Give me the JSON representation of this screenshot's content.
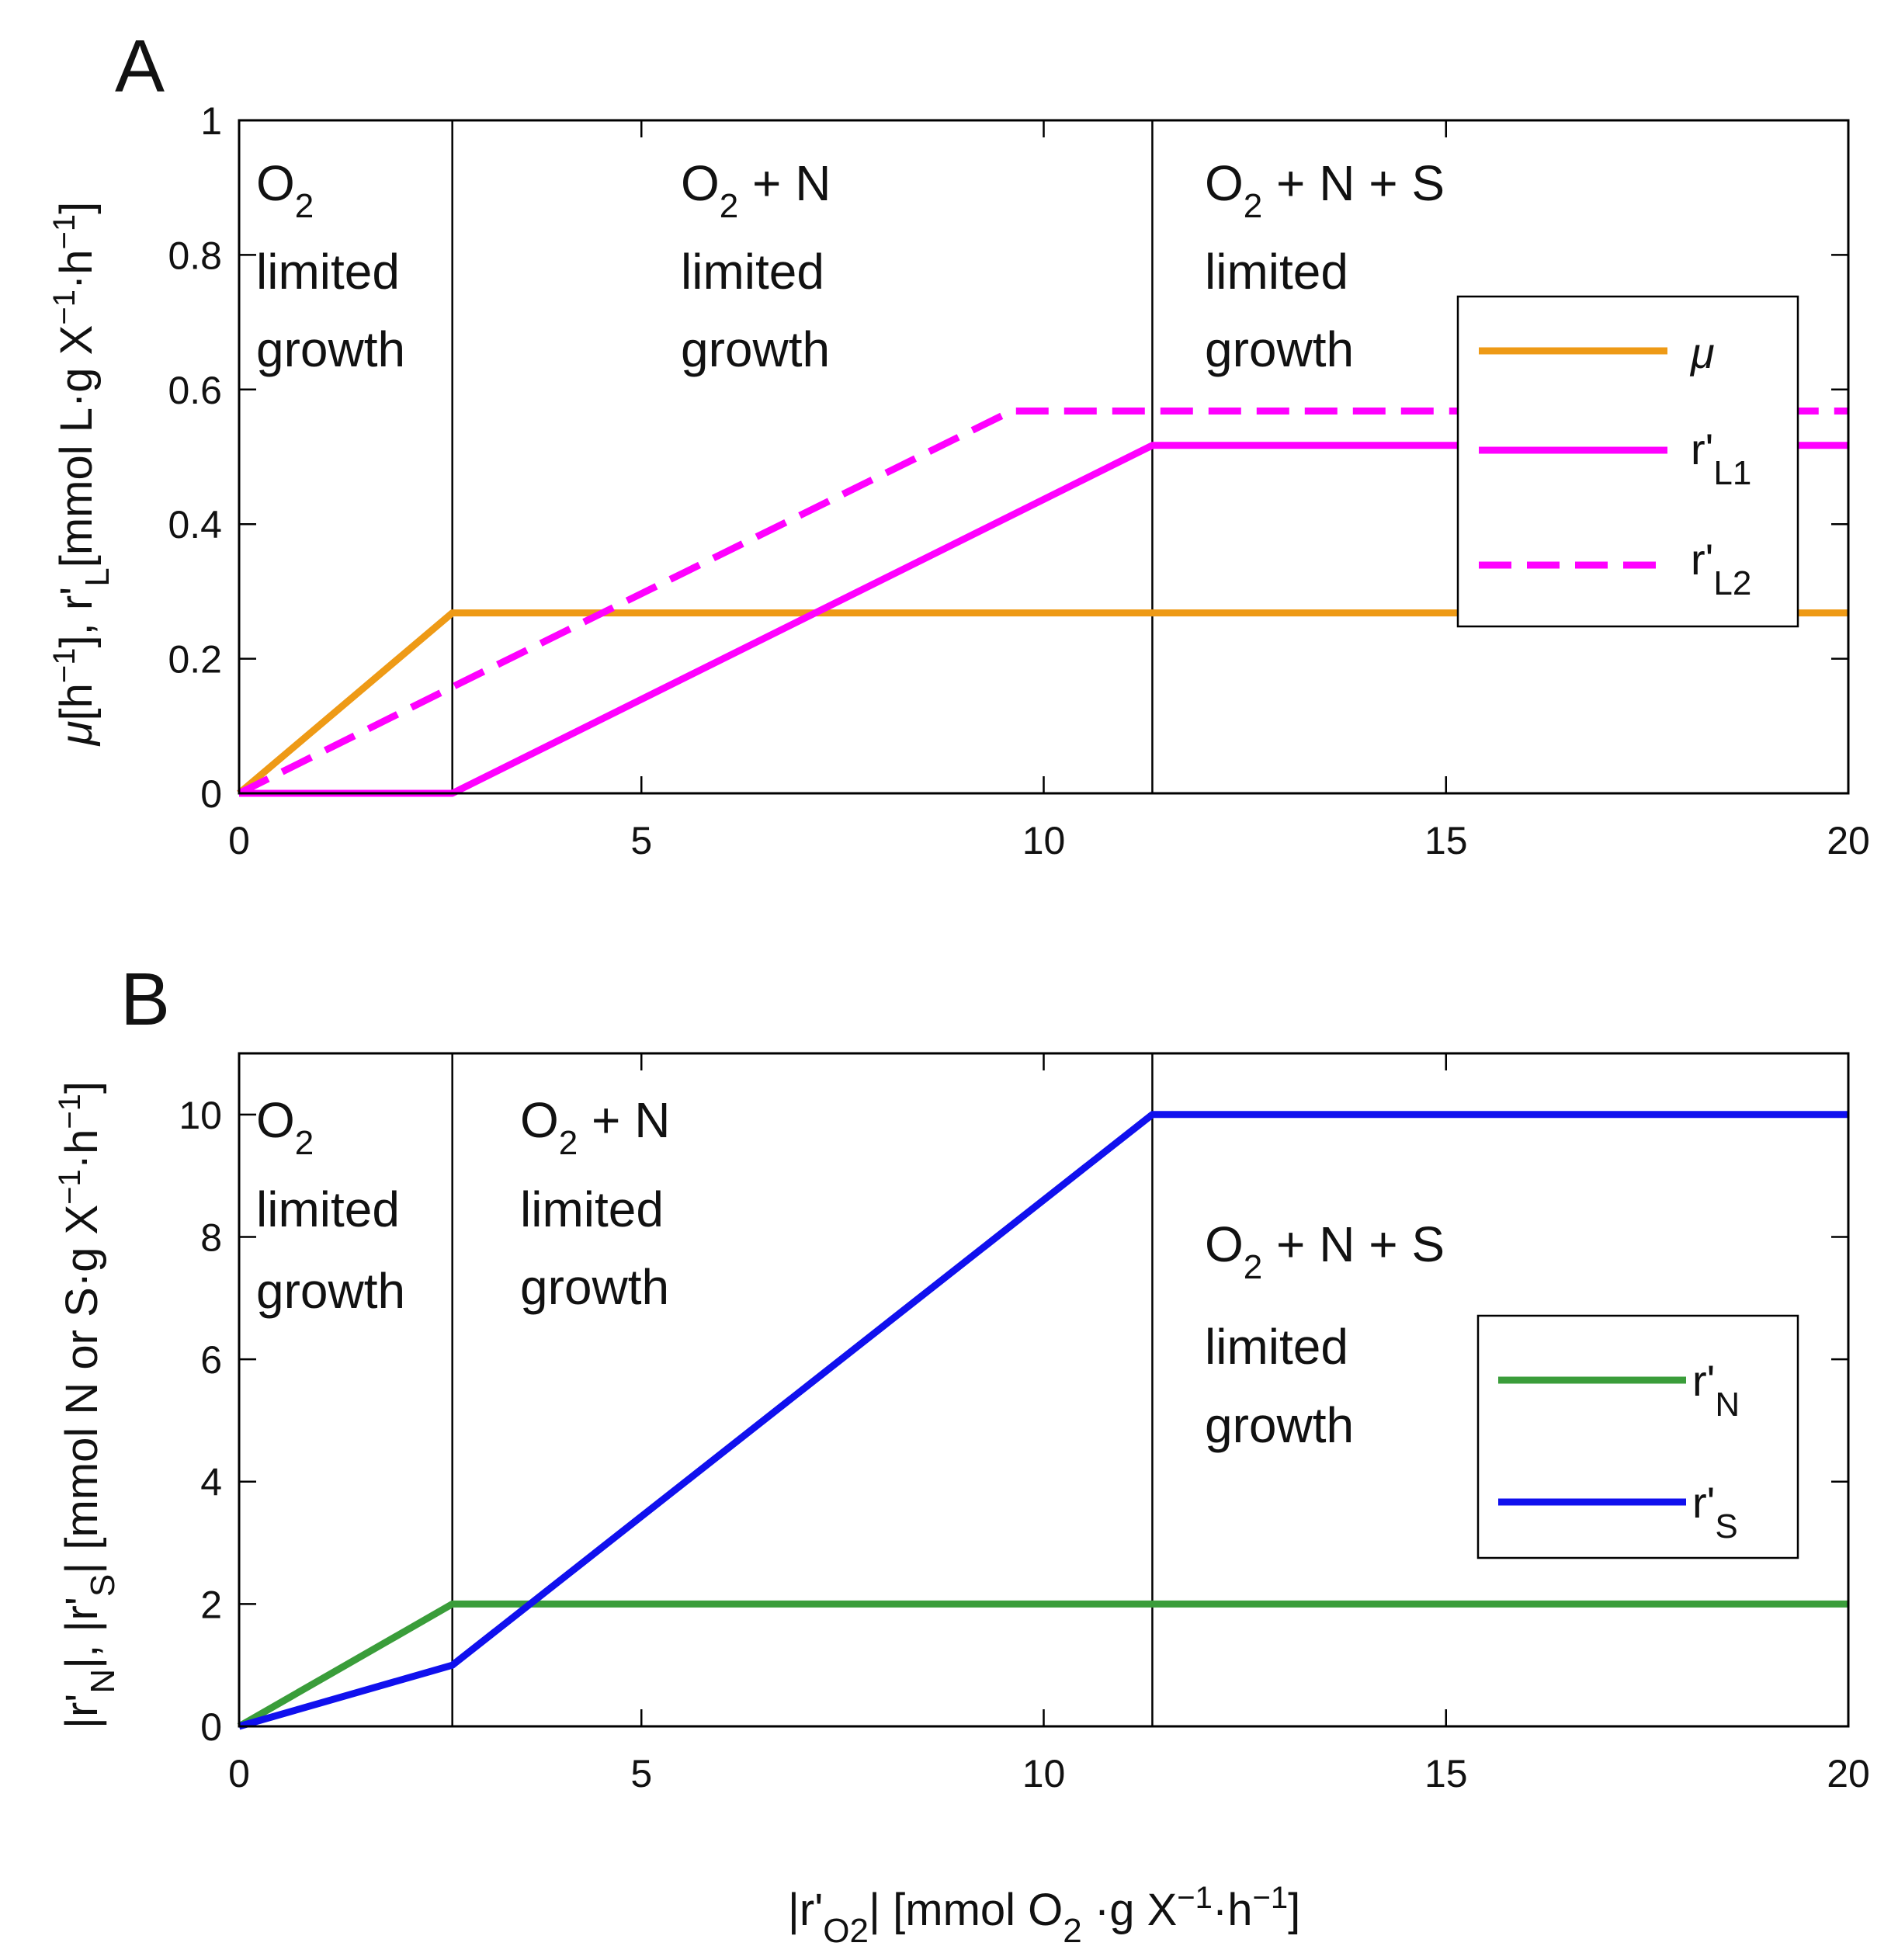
{
  "chart_data": [
    {
      "panel": "A",
      "type": "line",
      "xlim": [
        0,
        20
      ],
      "ylim": [
        0,
        1
      ],
      "xticks": [
        "0",
        "5",
        "10",
        "15",
        "20"
      ],
      "yticks": [
        "0",
        "0.2",
        "0.4",
        "0.6",
        "0.8",
        "1"
      ],
      "ylabel": "μ[h⁻¹], r'L[mmol L·g X⁻¹·h⁻¹]",
      "vlines": [
        2.65,
        11.35
      ],
      "regions": [
        {
          "l1": "O",
          "sub": "2",
          "rest": "",
          "l2": "limited",
          "l3": "growth"
        },
        {
          "l1": "O",
          "sub": "2",
          "rest": " + N",
          "l2": "limited",
          "l3": "growth"
        },
        {
          "l1": "O",
          "sub": "2",
          "rest": " + N + S",
          "l2": "limited",
          "l3": "growth"
        }
      ],
      "series": [
        {
          "name": "μ",
          "color": "#ee9a16",
          "dash": false,
          "x": [
            0,
            2.65,
            20
          ],
          "y": [
            0,
            0.268,
            0.268
          ]
        },
        {
          "name": "r'L1",
          "label": "r'",
          "subscript": "L1",
          "color": "#ff00ff",
          "dash": false,
          "x": [
            0,
            2.65,
            11.35,
            20
          ],
          "y": [
            0,
            0,
            0.517,
            0.517
          ]
        },
        {
          "name": "r'L2",
          "label": "r'",
          "subscript": "L2",
          "color": "#ff00ff",
          "dash": true,
          "x": [
            0,
            2.65,
            9.6,
            20
          ],
          "y": [
            0,
            0.158,
            0.568,
            0.568
          ]
        }
      ]
    },
    {
      "panel": "B",
      "type": "line",
      "xlim": [
        0,
        20
      ],
      "ylim": [
        0,
        11
      ],
      "xticks": [
        "0",
        "5",
        "10",
        "15",
        "20"
      ],
      "yticks": [
        "0",
        "2",
        "4",
        "6",
        "8",
        "10"
      ],
      "ylabel": "|r'N|, |r'S| [mmol N or S·g X⁻¹·h⁻¹]",
      "xlabel": "|r'O2| [mmol O2 ·g X⁻¹·h⁻¹]",
      "vlines": [
        2.65,
        11.35
      ],
      "regions": [
        {
          "l1": "O",
          "sub": "2",
          "rest": "",
          "l2": "limited",
          "l3": "growth"
        },
        {
          "l1": "O",
          "sub": "2",
          "rest": " + N",
          "l2": "limited",
          "l3": "growth"
        },
        {
          "l1": "O",
          "sub": "2",
          "rest": " + N + S",
          "l2": "limited",
          "l3": "growth"
        }
      ],
      "series": [
        {
          "name": "r'N",
          "label": "r'",
          "subscript": "N",
          "color": "#3a9d3a",
          "dash": false,
          "x": [
            0,
            2.65,
            20
          ],
          "y": [
            0,
            2,
            2
          ]
        },
        {
          "name": "r'S",
          "label": "r'",
          "subscript": "S",
          "color": "#1010ee",
          "dash": false,
          "x": [
            0,
            2.65,
            11.35,
            20
          ],
          "y": [
            0,
            1,
            10,
            10
          ]
        }
      ]
    }
  ]
}
